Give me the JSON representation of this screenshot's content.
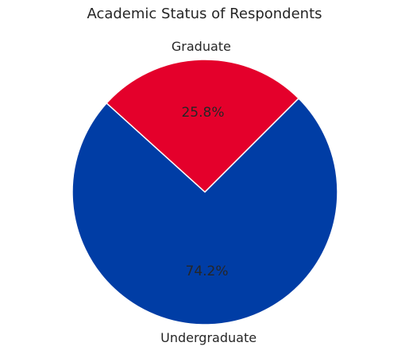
{
  "chart_data": {
    "type": "pie",
    "title": "Academic Status of Respondents",
    "slices": [
      {
        "label": "Graduate",
        "value": 25.8,
        "pct_label": "25.8%",
        "color": "#E4002B"
      },
      {
        "label": "Undergraduate",
        "value": 74.2,
        "pct_label": "74.2%",
        "color": "#003DA5"
      }
    ],
    "start_angle_deg": 45,
    "direction": "counterclockwise",
    "edge_color": "#ffffff",
    "legend": "none"
  }
}
